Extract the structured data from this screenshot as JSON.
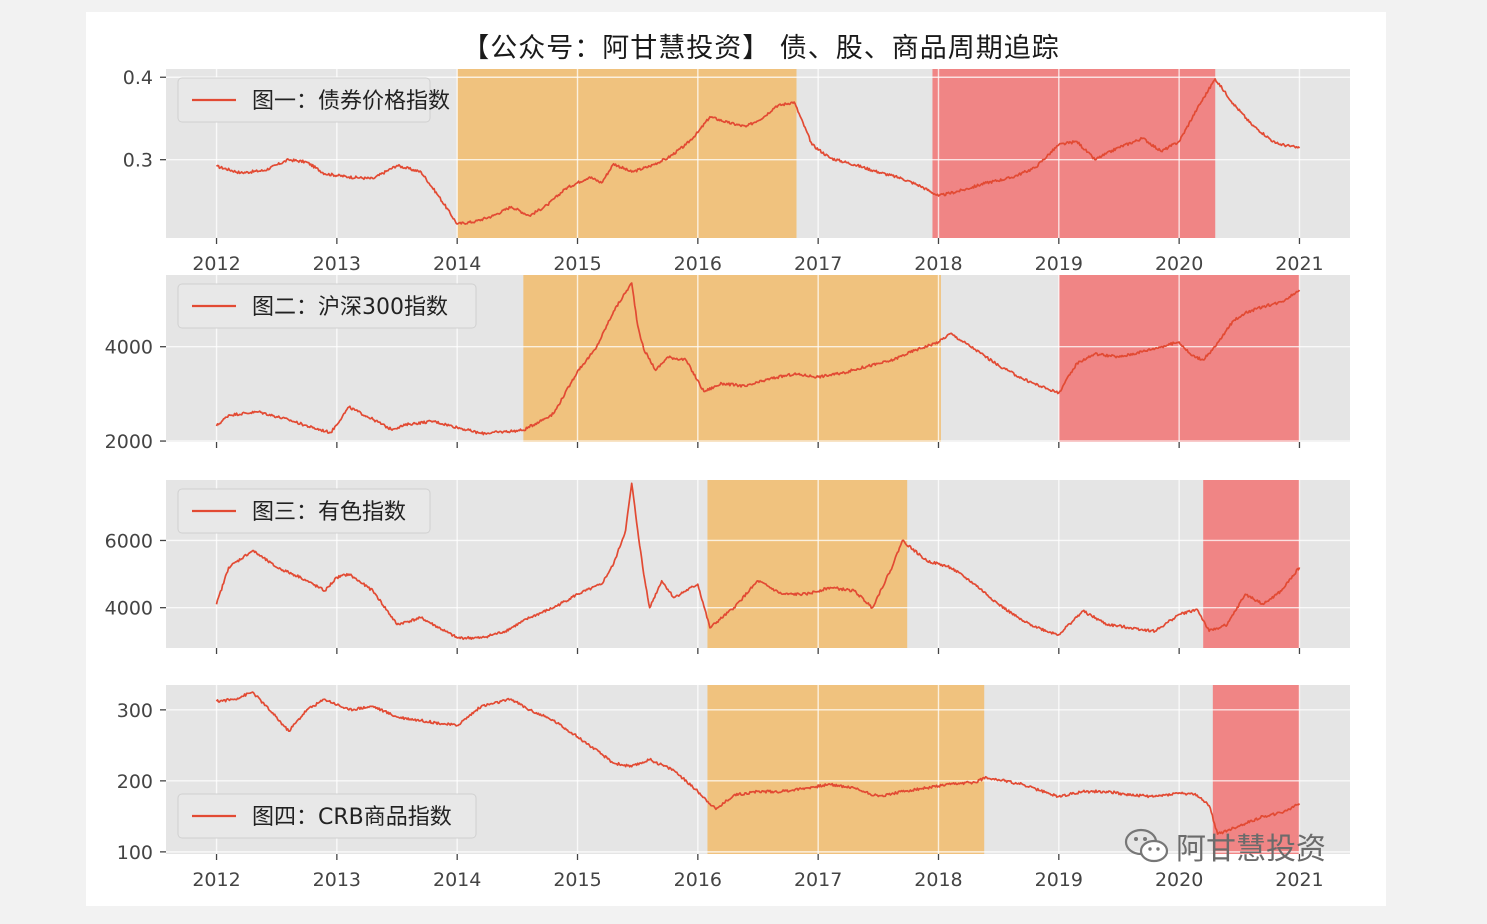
{
  "title": "【公众号：阿甘慧投资】 债、股、商品周期追踪",
  "watermark": "阿甘慧投资",
  "colors": {
    "line": "#e24a33",
    "panel_bg": "#e5e5e5",
    "grid": "#ffffff",
    "shade_orange": "#f0c078",
    "shade_red": "#f08080"
  },
  "chart_data": [
    {
      "type": "line",
      "legend": "图一：债券价格指数",
      "legend_position": "top-left",
      "grid": true,
      "x_ticks": [
        "2012",
        "2013",
        "2014",
        "2015",
        "2016",
        "2017",
        "2018",
        "2019",
        "2020",
        "2021"
      ],
      "x_tick_labels_shown": true,
      "xlim": [
        2011.58,
        2021.42
      ],
      "ylim": [
        0.205,
        0.41
      ],
      "y_ticks": [
        0.3,
        0.4
      ],
      "y_tick_labels": [
        "0.3",
        "0.4"
      ],
      "shaded_periods": [
        {
          "from": 2014.0,
          "to": 2016.82,
          "color": "orange"
        },
        {
          "from": 2017.95,
          "to": 2020.3,
          "color": "red"
        }
      ],
      "x": [
        2012.0,
        2012.2,
        2012.4,
        2012.6,
        2012.75,
        2012.9,
        2013.1,
        2013.3,
        2013.5,
        2013.7,
        2013.85,
        2014.0,
        2014.15,
        2014.3,
        2014.45,
        2014.6,
        2014.75,
        2014.9,
        2015.1,
        2015.2,
        2015.3,
        2015.45,
        2015.6,
        2015.75,
        2015.9,
        2016.0,
        2016.1,
        2016.25,
        2016.4,
        2016.55,
        2016.65,
        2016.8,
        2016.95,
        2017.1,
        2017.3,
        2017.5,
        2017.7,
        2017.85,
        2018.0,
        2018.2,
        2018.4,
        2018.6,
        2018.8,
        2019.0,
        2019.15,
        2019.3,
        2019.5,
        2019.7,
        2019.85,
        2020.0,
        2020.15,
        2020.3,
        2020.45,
        2020.6,
        2020.8,
        2021.0
      ],
      "y": [
        0.292,
        0.284,
        0.287,
        0.3,
        0.297,
        0.283,
        0.279,
        0.277,
        0.293,
        0.285,
        0.255,
        0.222,
        0.225,
        0.232,
        0.243,
        0.232,
        0.245,
        0.265,
        0.279,
        0.272,
        0.295,
        0.285,
        0.292,
        0.302,
        0.318,
        0.333,
        0.352,
        0.345,
        0.34,
        0.352,
        0.365,
        0.37,
        0.318,
        0.302,
        0.294,
        0.285,
        0.277,
        0.268,
        0.256,
        0.263,
        0.272,
        0.278,
        0.29,
        0.318,
        0.322,
        0.3,
        0.315,
        0.326,
        0.31,
        0.322,
        0.362,
        0.398,
        0.368,
        0.343,
        0.32,
        0.314
      ]
    },
    {
      "type": "line",
      "legend": "图二：沪深300指数",
      "legend_position": "top-left",
      "grid": true,
      "x_ticks": [
        "2012",
        "2013",
        "2014",
        "2015",
        "2016",
        "2017",
        "2018",
        "2019",
        "2020",
        "2021"
      ],
      "x_tick_labels_shown": false,
      "xlim": [
        2011.58,
        2021.42
      ],
      "ylim": [
        1980,
        5520
      ],
      "y_ticks": [
        2000,
        4000
      ],
      "y_tick_labels": [
        "2000",
        "4000"
      ],
      "shaded_periods": [
        {
          "from": 2014.55,
          "to": 2018.02,
          "color": "orange"
        },
        {
          "from": 2019.0,
          "to": 2021.0,
          "color": "red"
        }
      ],
      "x": [
        2012.0,
        2012.1,
        2012.35,
        2012.6,
        2012.8,
        2012.95,
        2013.1,
        2013.3,
        2013.45,
        2013.6,
        2013.8,
        2014.0,
        2014.2,
        2014.4,
        2014.55,
        2014.8,
        2014.95,
        2015.0,
        2015.15,
        2015.3,
        2015.45,
        2015.5,
        2015.55,
        2015.65,
        2015.75,
        2015.9,
        2016.05,
        2016.2,
        2016.4,
        2016.6,
        2016.8,
        2017.0,
        2017.2,
        2017.4,
        2017.6,
        2017.8,
        2018.0,
        2018.1,
        2018.3,
        2018.5,
        2018.7,
        2018.85,
        2019.0,
        2019.15,
        2019.3,
        2019.5,
        2019.65,
        2019.85,
        2020.0,
        2020.1,
        2020.2,
        2020.3,
        2020.45,
        2020.55,
        2020.7,
        2020.85,
        2021.0
      ],
      "y": [
        2320,
        2550,
        2620,
        2450,
        2280,
        2180,
        2720,
        2460,
        2250,
        2360,
        2420,
        2290,
        2160,
        2200,
        2230,
        2580,
        3250,
        3480,
        3950,
        4750,
        5350,
        4450,
        3950,
        3500,
        3780,
        3720,
        3050,
        3220,
        3160,
        3320,
        3420,
        3360,
        3440,
        3580,
        3700,
        3920,
        4100,
        4280,
        3950,
        3600,
        3320,
        3160,
        3020,
        3650,
        3850,
        3780,
        3870,
        4000,
        4100,
        3820,
        3720,
        4000,
        4550,
        4720,
        4850,
        4950,
        5200
      ]
    },
    {
      "type": "line",
      "legend": "图三：有色指数",
      "legend_position": "top-left",
      "grid": true,
      "x_ticks": [
        "2012",
        "2013",
        "2014",
        "2015",
        "2016",
        "2017",
        "2018",
        "2019",
        "2020",
        "2021"
      ],
      "x_tick_labels_shown": false,
      "xlim": [
        2011.58,
        2021.42
      ],
      "ylim": [
        2800,
        7800
      ],
      "y_ticks": [
        4000,
        6000
      ],
      "y_tick_labels": [
        "4000",
        "6000"
      ],
      "shaded_periods": [
        {
          "from": 2016.08,
          "to": 2017.74,
          "color": "orange"
        },
        {
          "from": 2020.2,
          "to": 2021.0,
          "color": "red"
        }
      ],
      "x": [
        2012.0,
        2012.1,
        2012.3,
        2012.5,
        2012.7,
        2012.9,
        2013.0,
        2013.1,
        2013.3,
        2013.5,
        2013.7,
        2013.9,
        2014.0,
        2014.2,
        2014.4,
        2014.6,
        2014.8,
        2015.0,
        2015.2,
        2015.3,
        2015.4,
        2015.45,
        2015.5,
        2015.55,
        2015.6,
        2015.7,
        2015.8,
        2016.0,
        2016.1,
        2016.3,
        2016.5,
        2016.7,
        2016.9,
        2017.1,
        2017.3,
        2017.45,
        2017.6,
        2017.7,
        2017.9,
        2018.1,
        2018.3,
        2018.5,
        2018.7,
        2018.9,
        2019.0,
        2019.2,
        2019.4,
        2019.6,
        2019.8,
        2020.0,
        2020.15,
        2020.25,
        2020.4,
        2020.55,
        2020.7,
        2020.85,
        2021.0
      ],
      "y": [
        4100,
        5200,
        5700,
        5200,
        4900,
        4500,
        4900,
        5000,
        4500,
        3500,
        3700,
        3300,
        3100,
        3100,
        3300,
        3700,
        4000,
        4400,
        4700,
        5300,
        6300,
        7700,
        6300,
        5000,
        4000,
        4800,
        4300,
        4700,
        3400,
        4000,
        4800,
        4400,
        4400,
        4600,
        4500,
        4000,
        5100,
        6000,
        5400,
        5200,
        4700,
        4100,
        3600,
        3300,
        3200,
        3900,
        3500,
        3400,
        3300,
        3800,
        3950,
        3300,
        3500,
        4400,
        4100,
        4500,
        5200
      ]
    },
    {
      "type": "line",
      "legend": "图四：CRB商品指数",
      "legend_position": "bottom-left",
      "grid": true,
      "x_ticks": [
        "2012",
        "2013",
        "2014",
        "2015",
        "2016",
        "2017",
        "2018",
        "2019",
        "2020",
        "2021"
      ],
      "x_tick_labels_shown": true,
      "xlim": [
        2011.58,
        2021.42
      ],
      "ylim": [
        97,
        335
      ],
      "y_ticks": [
        100,
        200,
        300
      ],
      "y_tick_labels": [
        "100",
        "200",
        "300"
      ],
      "shaded_periods": [
        {
          "from": 2016.08,
          "to": 2018.38,
          "color": "orange"
        },
        {
          "from": 2020.28,
          "to": 2021.0,
          "color": "red"
        }
      ],
      "x": [
        2012.0,
        2012.15,
        2012.3,
        2012.45,
        2012.6,
        2012.75,
        2012.9,
        2013.1,
        2013.3,
        2013.5,
        2013.7,
        2013.9,
        2014.0,
        2014.2,
        2014.45,
        2014.6,
        2014.8,
        2014.95,
        2015.1,
        2015.3,
        2015.45,
        2015.6,
        2015.8,
        2016.0,
        2016.15,
        2016.3,
        2016.5,
        2016.7,
        2016.9,
        2017.1,
        2017.3,
        2017.5,
        2017.7,
        2017.9,
        2018.1,
        2018.3,
        2018.4,
        2018.55,
        2018.7,
        2018.9,
        2019.0,
        2019.2,
        2019.4,
        2019.6,
        2019.8,
        2020.0,
        2020.15,
        2020.25,
        2020.32,
        2020.4,
        2020.55,
        2020.7,
        2020.85,
        2021.0
      ],
      "y": [
        312,
        315,
        325,
        298,
        270,
        300,
        315,
        300,
        305,
        290,
        285,
        280,
        278,
        305,
        315,
        300,
        285,
        268,
        250,
        225,
        220,
        230,
        215,
        185,
        160,
        180,
        185,
        185,
        190,
        195,
        190,
        178,
        185,
        190,
        195,
        198,
        205,
        200,
        195,
        183,
        178,
        185,
        185,
        180,
        178,
        183,
        180,
        165,
        125,
        130,
        140,
        150,
        155,
        168
      ]
    }
  ]
}
